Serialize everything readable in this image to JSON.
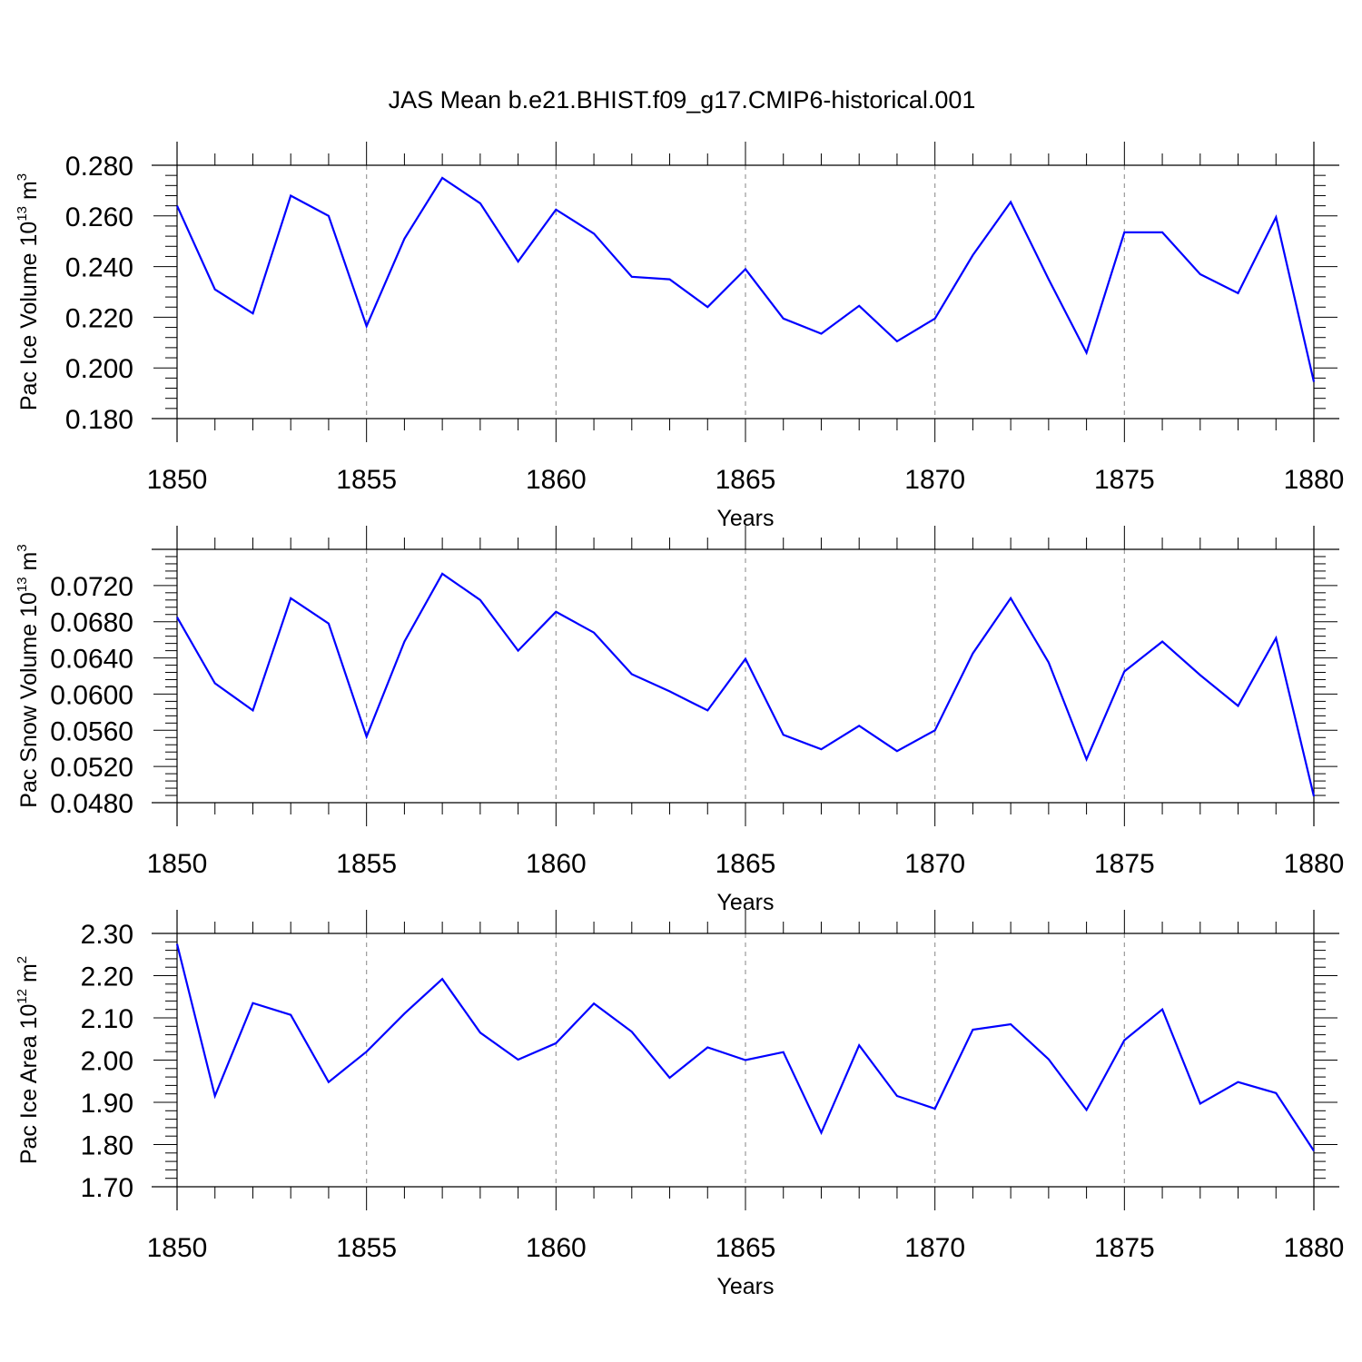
{
  "title": "JAS Mean b.e21.BHIST.f09_g17.CMIP6-historical.001",
  "colors": {
    "line": "#0000ff",
    "axis": "#000000",
    "grid": "#999999"
  },
  "chart_data": [
    {
      "type": "line",
      "ylabel": {
        "text": "Pac Ice Volume 10",
        "exp": "13",
        "unit": " m",
        "unit_exp": "3"
      },
      "xlabel": "Years",
      "xlim": [
        1850,
        1880
      ],
      "ylim": [
        0.18,
        0.28
      ],
      "yticks": [
        0.18,
        0.2,
        0.22,
        0.24,
        0.26,
        0.28
      ],
      "yticklabels": [
        "0.180",
        "0.200",
        "0.220",
        "0.240",
        "0.260",
        "0.280"
      ],
      "xticks": [
        1850,
        1855,
        1860,
        1865,
        1870,
        1875,
        1880
      ],
      "xticklabels": [
        "1850",
        "1855",
        "1860",
        "1865",
        "1870",
        "1875",
        "1880"
      ],
      "grid": "vertical dashed at major x ticks",
      "series": [
        {
          "name": "Pac Ice Volume",
          "x": [
            1850,
            1851,
            1852,
            1853,
            1854,
            1855,
            1856,
            1857,
            1858,
            1859,
            1860,
            1861,
            1862,
            1863,
            1864,
            1865,
            1866,
            1867,
            1868,
            1869,
            1870,
            1871,
            1872,
            1873,
            1874,
            1875,
            1876,
            1877,
            1878,
            1879,
            1880
          ],
          "values": [
            0.264,
            0.231,
            0.2215,
            0.268,
            0.26,
            0.2165,
            0.251,
            0.275,
            0.265,
            0.242,
            0.2625,
            0.253,
            0.236,
            0.235,
            0.224,
            0.239,
            0.2195,
            0.2135,
            0.2245,
            0.2105,
            0.2195,
            0.2445,
            0.2655,
            0.235,
            0.206,
            0.2535,
            0.2535,
            0.237,
            0.2295,
            0.2595,
            0.1945
          ]
        }
      ]
    },
    {
      "type": "line",
      "ylabel": {
        "text": "Pac Snow Volume 10",
        "exp": "13",
        "unit": " m",
        "unit_exp": "3"
      },
      "xlabel": "Years",
      "xlim": [
        1850,
        1880
      ],
      "ylim": [
        0.048,
        0.076
      ],
      "yticks": [
        0.048,
        0.052,
        0.056,
        0.06,
        0.064,
        0.068,
        0.072
      ],
      "yticklabels": [
        "0.0480",
        "0.0520",
        "0.0560",
        "0.0600",
        "0.0640",
        "0.0680",
        "0.0720"
      ],
      "xticks": [
        1850,
        1855,
        1860,
        1865,
        1870,
        1875,
        1880
      ],
      "xticklabels": [
        "1850",
        "1855",
        "1860",
        "1865",
        "1870",
        "1875",
        "1880"
      ],
      "grid": "vertical dashed at major x ticks",
      "series": [
        {
          "name": "Pac Snow Volume",
          "x": [
            1850,
            1851,
            1852,
            1853,
            1854,
            1855,
            1856,
            1857,
            1858,
            1859,
            1860,
            1861,
            1862,
            1863,
            1864,
            1865,
            1866,
            1867,
            1868,
            1869,
            1870,
            1871,
            1872,
            1873,
            1874,
            1875,
            1876,
            1877,
            1878,
            1879,
            1880
          ],
          "values": [
            0.0685,
            0.0612,
            0.0582,
            0.0706,
            0.0678,
            0.0553,
            0.0658,
            0.0733,
            0.0704,
            0.0648,
            0.0691,
            0.0668,
            0.0622,
            0.0603,
            0.0582,
            0.0639,
            0.0555,
            0.0539,
            0.0565,
            0.0537,
            0.056,
            0.0645,
            0.0706,
            0.0635,
            0.0528,
            0.0625,
            0.0658,
            0.0621,
            0.0587,
            0.0662,
            0.0487
          ]
        }
      ]
    },
    {
      "type": "line",
      "ylabel": {
        "text": "Pac Ice Area 10",
        "exp": "12",
        "unit": " m",
        "unit_exp": "2"
      },
      "xlabel": "Years",
      "xlim": [
        1850,
        1880
      ],
      "ylim": [
        1.7,
        2.3
      ],
      "yticks": [
        1.7,
        1.8,
        1.9,
        2.0,
        2.1,
        2.2,
        2.3
      ],
      "yticklabels": [
        "1.70",
        "1.80",
        "1.90",
        "2.00",
        "2.10",
        "2.20",
        "2.30"
      ],
      "xticks": [
        1850,
        1855,
        1860,
        1865,
        1870,
        1875,
        1880
      ],
      "xticklabels": [
        "1850",
        "1855",
        "1860",
        "1865",
        "1870",
        "1875",
        "1880"
      ],
      "grid": "vertical dashed at major x ticks",
      "series": [
        {
          "name": "Pac Ice Area",
          "x": [
            1850,
            1851,
            1852,
            1853,
            1854,
            1855,
            1856,
            1857,
            1858,
            1859,
            1860,
            1861,
            1862,
            1863,
            1864,
            1865,
            1866,
            1867,
            1868,
            1869,
            1870,
            1871,
            1872,
            1873,
            1874,
            1875,
            1876,
            1877,
            1878,
            1879,
            1880
          ],
          "values": [
            2.275,
            1.915,
            2.135,
            2.107,
            1.948,
            2.02,
            2.11,
            2.192,
            2.065,
            2.001,
            2.04,
            2.134,
            2.067,
            1.958,
            2.03,
            2.0,
            2.019,
            1.828,
            2.035,
            1.915,
            1.885,
            2.072,
            2.085,
            2.002,
            1.882,
            2.047,
            2.12,
            1.897,
            1.948,
            1.922,
            1.785
          ]
        }
      ]
    }
  ]
}
